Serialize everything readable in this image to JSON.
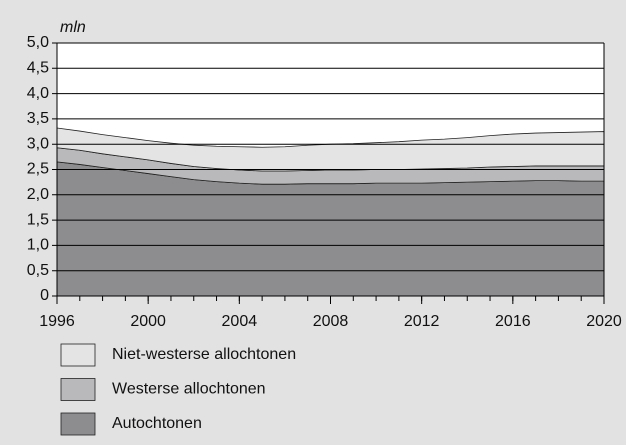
{
  "chart_data": {
    "type": "stacked_area",
    "y_label": "mln",
    "x": [
      1996,
      1997,
      1998,
      1999,
      2000,
      2001,
      2002,
      2003,
      2004,
      2005,
      2006,
      2007,
      2008,
      2009,
      2010,
      2011,
      2012,
      2013,
      2014,
      2015,
      2016,
      2017,
      2018,
      2019,
      2020
    ],
    "series": [
      {
        "name": "Autochtonen",
        "color": "#8d8d8f",
        "values": [
          2.65,
          2.6,
          2.54,
          2.48,
          2.42,
          2.36,
          2.3,
          2.26,
          2.23,
          2.21,
          2.21,
          2.22,
          2.22,
          2.22,
          2.23,
          2.23,
          2.23,
          2.24,
          2.25,
          2.26,
          2.27,
          2.28,
          2.28,
          2.27,
          2.27
        ]
      },
      {
        "name": "Westerse allochtonen",
        "color": "#b9b9bb",
        "values": [
          0.28,
          0.28,
          0.27,
          0.27,
          0.27,
          0.26,
          0.26,
          0.26,
          0.26,
          0.26,
          0.26,
          0.26,
          0.27,
          0.27,
          0.27,
          0.27,
          0.28,
          0.28,
          0.28,
          0.29,
          0.29,
          0.29,
          0.29,
          0.3,
          0.3
        ]
      },
      {
        "name": "Niet-westerse allochtonen",
        "color": "#e4e4e5",
        "values": [
          0.39,
          0.38,
          0.38,
          0.38,
          0.38,
          0.4,
          0.42,
          0.44,
          0.46,
          0.47,
          0.48,
          0.5,
          0.51,
          0.52,
          0.53,
          0.55,
          0.57,
          0.58,
          0.6,
          0.62,
          0.64,
          0.65,
          0.66,
          0.67,
          0.68
        ]
      }
    ],
    "xlim": [
      1996,
      2020
    ],
    "xticks": [
      1996,
      2000,
      2004,
      2008,
      2012,
      2016,
      2020
    ],
    "ylim": [
      0,
      5
    ],
    "yticks": [
      0,
      {
        "value": 0.5,
        "label": "0,5"
      },
      {
        "value": 1,
        "label": "1,0"
      },
      {
        "value": 1.5,
        "label": "1,5"
      },
      {
        "value": 2,
        "label": "2,0"
      },
      {
        "value": 2.5,
        "label": "2,5"
      },
      {
        "value": 3,
        "label": "3,0"
      },
      {
        "value": 3.5,
        "label": "3,5"
      },
      {
        "value": 4,
        "label": "4,0"
      },
      {
        "value": 4.5,
        "label": "4,5"
      },
      {
        "value": 5,
        "label": "5,0"
      }
    ],
    "grid": true
  }
}
